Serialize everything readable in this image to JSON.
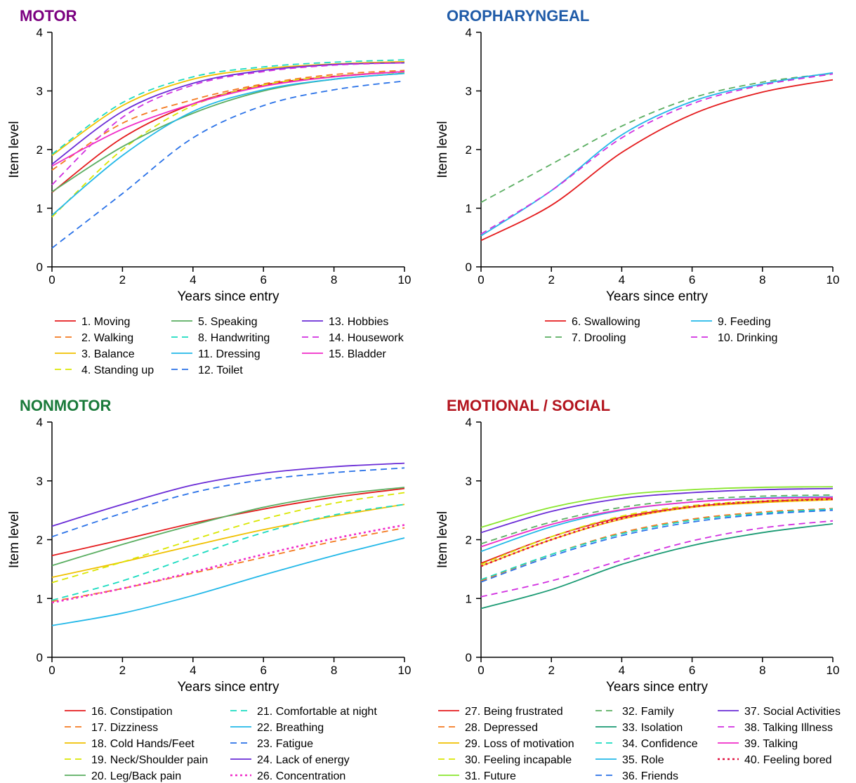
{
  "chart_data": [
    {
      "type": "line",
      "title": "MOTOR",
      "title_color": "#7B0080",
      "xlabel": "Years since entry",
      "ylabel": "Item level",
      "xlim": [
        0,
        10
      ],
      "ylim": [
        0,
        4
      ],
      "xticks": [
        "0",
        "2",
        "4",
        "6",
        "8",
        "10"
      ],
      "yticks": [
        "0",
        "1",
        "2",
        "3",
        "4"
      ],
      "series": [
        {
          "name": "1. Moving",
          "color": "#E41A1C",
          "dash": false,
          "x": [
            0,
            2,
            4,
            6,
            8,
            10
          ],
          "values": [
            1.27,
            2.2,
            2.78,
            3.1,
            3.25,
            3.33
          ]
        },
        {
          "name": "2. Walking",
          "color": "#F47A20",
          "dash": true,
          "x": [
            0,
            2,
            4,
            6,
            8,
            10
          ],
          "values": [
            1.65,
            2.45,
            2.85,
            3.12,
            3.28,
            3.35
          ]
        },
        {
          "name": "3. Balance",
          "color": "#F0C000",
          "dash": false,
          "x": [
            0,
            2,
            4,
            6,
            8,
            10
          ],
          "values": [
            1.9,
            2.75,
            3.2,
            3.38,
            3.46,
            3.5
          ]
        },
        {
          "name": "4. Standing up",
          "color": "#D9E600",
          "dash": true,
          "x": [
            0,
            2,
            4,
            6,
            8,
            10
          ],
          "values": [
            0.85,
            2.0,
            2.75,
            3.1,
            3.25,
            3.32
          ]
        },
        {
          "name": "5. Speaking",
          "color": "#5AAE61",
          "dash": false,
          "x": [
            0,
            2,
            4,
            6,
            8,
            10
          ],
          "values": [
            1.28,
            2.05,
            2.62,
            3.0,
            3.2,
            3.3
          ]
        },
        {
          "name": "8. Handwriting",
          "color": "#1ADBC0",
          "dash": true,
          "x": [
            0,
            2,
            4,
            6,
            8,
            10
          ],
          "values": [
            1.92,
            2.8,
            3.24,
            3.41,
            3.49,
            3.53
          ]
        },
        {
          "name": "11. Dressing",
          "color": "#22B8E8",
          "dash": false,
          "x": [
            0,
            2,
            4,
            6,
            8,
            10
          ],
          "values": [
            0.88,
            1.9,
            2.65,
            3.02,
            3.2,
            3.3
          ]
        },
        {
          "name": "12. Toilet",
          "color": "#2A72E8",
          "dash": true,
          "x": [
            0,
            2,
            4,
            6,
            8,
            10
          ],
          "values": [
            0.32,
            1.25,
            2.2,
            2.75,
            3.02,
            3.17
          ]
        },
        {
          "name": "13. Hobbies",
          "color": "#6A2BD6",
          "dash": false,
          "x": [
            0,
            2,
            4,
            6,
            8,
            10
          ],
          "values": [
            1.75,
            2.65,
            3.13,
            3.35,
            3.45,
            3.48
          ]
        },
        {
          "name": "14. Housework",
          "color": "#D12FE0",
          "dash": true,
          "x": [
            0,
            2,
            4,
            6,
            8,
            10
          ],
          "values": [
            1.4,
            2.55,
            3.1,
            3.33,
            3.44,
            3.48
          ]
        },
        {
          "name": "15. Bladder",
          "color": "#F02BC8",
          "dash": false,
          "x": [
            0,
            2,
            4,
            6,
            8,
            10
          ],
          "values": [
            1.72,
            2.35,
            2.78,
            3.08,
            3.24,
            3.33
          ]
        }
      ],
      "legend": [
        [
          "1. Moving",
          "2. Walking",
          "3. Balance",
          "4. Standing up"
        ],
        [
          "5. Speaking",
          "8. Handwriting",
          "11. Dressing",
          "12. Toilet"
        ],
        [
          "13. Hobbies",
          "14. Housework",
          "15. Bladder"
        ]
      ]
    },
    {
      "type": "line",
      "title": "OROPHARYNGEAL",
      "title_color": "#1F5BA8",
      "xlabel": "Years since entry",
      "ylabel": "Item level",
      "xlim": [
        0,
        10
      ],
      "ylim": [
        0,
        4
      ],
      "xticks": [
        "0",
        "2",
        "4",
        "6",
        "8",
        "10"
      ],
      "yticks": [
        "0",
        "1",
        "2",
        "3",
        "4"
      ],
      "series": [
        {
          "name": "6. Swallowing",
          "color": "#E41A1C",
          "dash": false,
          "x": [
            0,
            2,
            4,
            6,
            8,
            10
          ],
          "values": [
            0.45,
            1.05,
            1.95,
            2.6,
            2.98,
            3.19
          ]
        },
        {
          "name": "7. Drooling",
          "color": "#5AAE61",
          "dash": true,
          "x": [
            0,
            2,
            4,
            6,
            8,
            10
          ],
          "values": [
            1.1,
            1.75,
            2.4,
            2.88,
            3.15,
            3.3
          ]
        },
        {
          "name": "9. Feeding",
          "color": "#22B8E8",
          "dash": false,
          "x": [
            0,
            2,
            4,
            6,
            8,
            10
          ],
          "values": [
            0.53,
            1.3,
            2.25,
            2.82,
            3.12,
            3.31
          ]
        },
        {
          "name": "10. Drinking",
          "color": "#D12FE0",
          "dash": true,
          "x": [
            0,
            2,
            4,
            6,
            8,
            10
          ],
          "values": [
            0.56,
            1.3,
            2.2,
            2.78,
            3.1,
            3.29
          ]
        }
      ],
      "legend": [
        [
          "6. Swallowing",
          "7. Drooling"
        ],
        [
          "9. Feeding",
          "10. Drinking"
        ]
      ]
    },
    {
      "type": "line",
      "title": "NONMOTOR",
      "title_color": "#1A7A3A",
      "xlabel": "Years since entry",
      "ylabel": "Item level",
      "xlim": [
        0,
        10
      ],
      "ylim": [
        0,
        4
      ],
      "xticks": [
        "0",
        "2",
        "4",
        "6",
        "8",
        "10"
      ],
      "yticks": [
        "0",
        "1",
        "2",
        "3",
        "4"
      ],
      "series": [
        {
          "name": "16. Constipation",
          "color": "#E41A1C",
          "dash": false,
          "x": [
            0,
            2,
            4,
            6,
            8,
            10
          ],
          "values": [
            1.73,
            2.0,
            2.28,
            2.52,
            2.72,
            2.87
          ]
        },
        {
          "name": "17. Dizziness",
          "color": "#F47A20",
          "dash": true,
          "x": [
            0,
            2,
            4,
            6,
            8,
            10
          ],
          "values": [
            0.95,
            1.17,
            1.43,
            1.7,
            1.97,
            2.2
          ]
        },
        {
          "name": "18. Cold Hands/Feet",
          "color": "#F0C000",
          "dash": false,
          "x": [
            0,
            2,
            4,
            6,
            8,
            10
          ],
          "values": [
            1.36,
            1.62,
            1.9,
            2.17,
            2.4,
            2.6
          ]
        },
        {
          "name": "19. Neck/Shoulder pain",
          "color": "#D9E600",
          "dash": true,
          "x": [
            0,
            2,
            4,
            6,
            8,
            10
          ],
          "values": [
            1.27,
            1.62,
            2.0,
            2.35,
            2.62,
            2.8
          ]
        },
        {
          "name": "20. Leg/Back pain",
          "color": "#5AAE61",
          "dash": false,
          "x": [
            0,
            2,
            4,
            6,
            8,
            10
          ],
          "values": [
            1.56,
            1.92,
            2.25,
            2.55,
            2.76,
            2.89
          ]
        },
        {
          "name": "21. Comfortable at night",
          "color": "#1ADBC0",
          "dash": true,
          "x": [
            0,
            2,
            4,
            6,
            8,
            10
          ],
          "values": [
            0.97,
            1.3,
            1.72,
            2.12,
            2.42,
            2.6
          ]
        },
        {
          "name": "22. Breathing",
          "color": "#22B8E8",
          "dash": false,
          "x": [
            0,
            2,
            4,
            6,
            8,
            10
          ],
          "values": [
            0.54,
            0.75,
            1.05,
            1.4,
            1.73,
            2.03
          ]
        },
        {
          "name": "23. Fatigue",
          "color": "#2A72E8",
          "dash": true,
          "x": [
            0,
            2,
            4,
            6,
            8,
            10
          ],
          "values": [
            2.05,
            2.45,
            2.8,
            3.02,
            3.14,
            3.22
          ]
        },
        {
          "name": "24. Lack of energy",
          "color": "#6A2BD6",
          "dash": false,
          "x": [
            0,
            2,
            4,
            6,
            8,
            10
          ],
          "values": [
            2.23,
            2.6,
            2.93,
            3.13,
            3.24,
            3.3
          ]
        },
        {
          "name": "26. Concentration",
          "color": "#F02BC8",
          "dash": "dot",
          "x": [
            0,
            2,
            4,
            6,
            8,
            10
          ],
          "values": [
            0.93,
            1.17,
            1.45,
            1.75,
            2.02,
            2.25
          ]
        }
      ],
      "legend": [
        [
          "16. Constipation",
          "17. Dizziness",
          "18. Cold Hands/Feet",
          "19. Neck/Shoulder pain",
          "20. Leg/Back pain"
        ],
        [
          "21. Comfortable at night",
          "22. Breathing",
          "23. Fatigue",
          "24. Lack of energy",
          "26. Concentration"
        ]
      ]
    },
    {
      "type": "line",
      "title": "EMOTIONAL / SOCIAL",
      "title_color": "#B3141E",
      "xlabel": "Years since entry",
      "ylabel": "Item level",
      "xlim": [
        0,
        10
      ],
      "ylim": [
        0,
        4
      ],
      "xticks": [
        "0",
        "2",
        "4",
        "6",
        "8",
        "10"
      ],
      "yticks": [
        "0",
        "1",
        "2",
        "3",
        "4"
      ],
      "series": [
        {
          "name": "27. Being frustrated",
          "color": "#E41A1C",
          "dash": false,
          "x": [
            0,
            2,
            4,
            6,
            8,
            10
          ],
          "values": [
            1.6,
            2.05,
            2.38,
            2.56,
            2.65,
            2.7
          ]
        },
        {
          "name": "28. Depressed",
          "color": "#F47A20",
          "dash": true,
          "x": [
            0,
            2,
            4,
            6,
            8,
            10
          ],
          "values": [
            1.3,
            1.75,
            2.12,
            2.35,
            2.47,
            2.53
          ]
        },
        {
          "name": "29. Loss of motivation",
          "color": "#F0C000",
          "dash": false,
          "x": [
            0,
            2,
            4,
            6,
            8,
            10
          ],
          "values": [
            1.55,
            2.0,
            2.35,
            2.55,
            2.63,
            2.68
          ]
        },
        {
          "name": "30. Feeling incapable",
          "color": "#D9E600",
          "dash": true,
          "x": [
            0,
            2,
            4,
            6,
            8,
            10
          ],
          "values": [
            1.58,
            2.05,
            2.4,
            2.58,
            2.66,
            2.7
          ]
        },
        {
          "name": "31. Future",
          "color": "#8AE62E",
          "dash": false,
          "x": [
            0,
            2,
            4,
            6,
            8,
            10
          ],
          "values": [
            2.21,
            2.55,
            2.76,
            2.85,
            2.89,
            2.9
          ]
        },
        {
          "name": "32. Family",
          "color": "#5AAE61",
          "dash": true,
          "x": [
            0,
            2,
            4,
            6,
            8,
            10
          ],
          "values": [
            1.93,
            2.3,
            2.55,
            2.68,
            2.74,
            2.76
          ]
        },
        {
          "name": "33. Isolation",
          "color": "#1A9A73",
          "dash": false,
          "x": [
            0,
            2,
            4,
            6,
            8,
            10
          ],
          "values": [
            0.83,
            1.15,
            1.58,
            1.9,
            2.12,
            2.27
          ]
        },
        {
          "name": "34. Confidence",
          "color": "#1ADBC0",
          "dash": true,
          "x": [
            0,
            2,
            4,
            6,
            8,
            10
          ],
          "values": [
            1.32,
            1.75,
            2.1,
            2.33,
            2.45,
            2.52
          ]
        },
        {
          "name": "35. Role",
          "color": "#22B8E8",
          "dash": false,
          "x": [
            0,
            2,
            4,
            6,
            8,
            10
          ],
          "values": [
            1.8,
            2.22,
            2.5,
            2.64,
            2.71,
            2.73
          ]
        },
        {
          "name": "36. Friends",
          "color": "#2A72E8",
          "dash": true,
          "x": [
            0,
            2,
            4,
            6,
            8,
            10
          ],
          "values": [
            1.28,
            1.72,
            2.07,
            2.3,
            2.43,
            2.5
          ]
        },
        {
          "name": "37. Social Activities",
          "color": "#6A2BD6",
          "dash": false,
          "x": [
            0,
            2,
            4,
            6,
            8,
            10
          ],
          "values": [
            2.12,
            2.48,
            2.7,
            2.8,
            2.85,
            2.87
          ]
        },
        {
          "name": "38. Talking Illness",
          "color": "#D12FE0",
          "dash": true,
          "x": [
            0,
            2,
            4,
            6,
            8,
            10
          ],
          "values": [
            1.03,
            1.3,
            1.65,
            1.98,
            2.2,
            2.32
          ]
        },
        {
          "name": "39. Talking",
          "color": "#F02BC8",
          "dash": false,
          "x": [
            0,
            2,
            4,
            6,
            8,
            10
          ],
          "values": [
            1.88,
            2.26,
            2.51,
            2.64,
            2.7,
            2.72
          ]
        },
        {
          "name": "40. Feeling bored",
          "color": "#E0103E",
          "dash": "dot",
          "x": [
            0,
            2,
            4,
            6,
            8,
            10
          ],
          "values": [
            1.55,
            2.0,
            2.36,
            2.56,
            2.65,
            2.69
          ]
        }
      ],
      "legend": [
        [
          "27. Being frustrated",
          "28. Depressed",
          "29. Loss of motivation",
          "30. Feeling incapable",
          "31. Future"
        ],
        [
          "32. Family",
          "33. Isolation",
          "34. Confidence",
          "35. Role",
          "36. Friends"
        ],
        [
          "37. Social Activities",
          "38. Talking Illness",
          "39. Talking",
          "40. Feeling bored"
        ]
      ]
    }
  ]
}
